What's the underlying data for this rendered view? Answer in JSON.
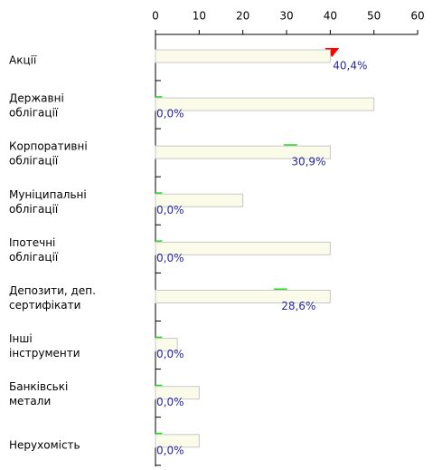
{
  "chart_data": {
    "type": "bar-bullet",
    "categories": [
      [
        "Акції"
      ],
      [
        "Державні",
        "облігації"
      ],
      [
        "Корпоративні",
        "облігації"
      ],
      [
        "Муніципальні",
        "облігації"
      ],
      [
        "Іпотечні",
        "облігації"
      ],
      [
        "Депозити, деп.",
        "сертифікати"
      ],
      [
        "Інші",
        "інструменти"
      ],
      [
        "Банківські",
        "метали"
      ],
      [
        "Нерухомість"
      ]
    ],
    "series": [
      {
        "color": "#fbfbe9",
        "values": [
          40,
          50,
          40,
          20,
          40,
          40,
          5,
          10,
          10
        ]
      },
      {
        "colors": [
          "#ff0000",
          "#22dd22",
          "#22dd22",
          "#22dd22",
          "#22dd22",
          "#22dd22",
          "#22dd22",
          "#22dd22",
          "#22dd22"
        ],
        "values": [
          40.4,
          0,
          30.9,
          0,
          0,
          28.6,
          0,
          0,
          0
        ],
        "value_labels": [
          "40,4%",
          "0,0%",
          "30,9%",
          "0,0%",
          "0,0%",
          "28,6%",
          "0,0%",
          "0,0%",
          "0,0%"
        ]
      }
    ],
    "xlim": [
      0,
      60
    ],
    "xticks": [
      0,
      10,
      20,
      30,
      40,
      50,
      60
    ]
  }
}
